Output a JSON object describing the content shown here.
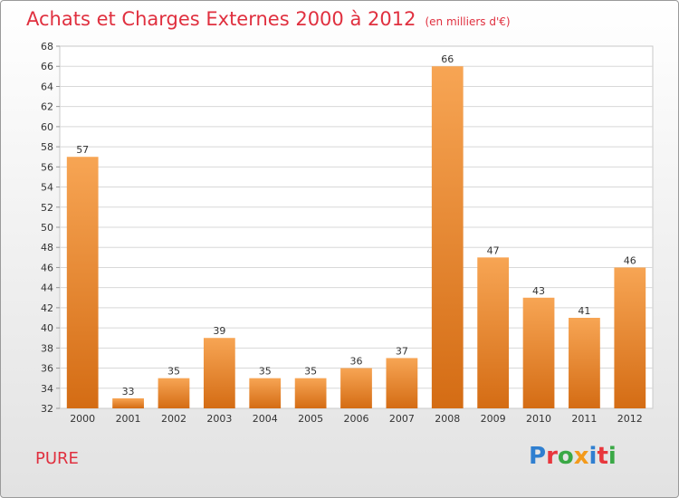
{
  "header": {
    "title": "Achats et Charges Externes 2000 à 2012",
    "subtitle": "(en milliers d'€)"
  },
  "footer": {
    "town": "PURE",
    "logo": "Proxiti",
    "logo_colors": [
      "#2f7fd0",
      "#e8373d",
      "#3aa845",
      "#f39a1b",
      "#2f7fd0",
      "#e8373d",
      "#3aa845"
    ]
  },
  "chart_data": {
    "type": "bar",
    "title": "Achats et Charges Externes 2000 à 2012",
    "subtitle": "(en milliers d'€)",
    "categories": [
      "2000",
      "2001",
      "2002",
      "2003",
      "2004",
      "2005",
      "2006",
      "2007",
      "2008",
      "2009",
      "2010",
      "2011",
      "2012"
    ],
    "values": [
      57,
      33,
      35,
      39,
      35,
      35,
      36,
      37,
      66,
      47,
      43,
      41,
      46
    ],
    "ylim": [
      32,
      68
    ],
    "yticks": [
      32,
      34,
      36,
      38,
      40,
      42,
      44,
      46,
      48,
      50,
      52,
      54,
      56,
      58,
      60,
      62,
      64,
      66,
      68
    ],
    "grid": true,
    "bar_color_top": "#f7a554",
    "bar_color_bottom": "#d46c14",
    "legend": "none"
  }
}
